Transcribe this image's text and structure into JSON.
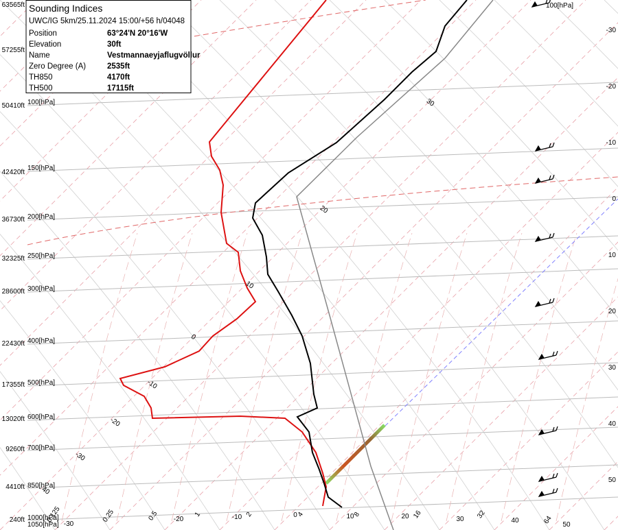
{
  "info": {
    "title": "Sounding Indices",
    "subtitle": "UWC/IG 5km/25.11.2024 15:00/+56 h/04048",
    "rows": [
      [
        "Position",
        "63°24'N 20°16'W"
      ],
      [
        "Elevation",
        "30ft"
      ],
      [
        "Name",
        "Vestmannaeyjaflugvöllur"
      ],
      [
        "Zero Degree (A)",
        "2535ft"
      ],
      [
        "TH850",
        "4170ft"
      ],
      [
        "TH500",
        "17115ft"
      ]
    ]
  },
  "altitude_labels": [
    "63565ft",
    "57255ft",
    "50410ft",
    "42420ft",
    "36730ft",
    "32325ft",
    "28600ft",
    "22430ft",
    "17355ft",
    "13020ft",
    "9260ft",
    "4410ft",
    "240ft"
  ],
  "pressure_labels": [
    "100[hPa]",
    "150[hPa]",
    "200[hPa]",
    "250[hPa]",
    "300[hPa]",
    "400[hPa]",
    "500[hPa]",
    "600[hPa]",
    "700[hPa]",
    "850[hPa]",
    "1000[hPa]",
    "1050[hPa]"
  ],
  "top_right_label": "100[hPa]",
  "right_temperature_labels": [
    "-30",
    "-20",
    "-10",
    "0",
    "10",
    "20",
    "30",
    "40",
    "50"
  ],
  "bottom_temperature_labels": [
    "-30",
    "-20",
    "-10",
    "0",
    "10",
    "20",
    "30",
    "40",
    "50"
  ],
  "mixing_ratio_labels": [
    "0.125",
    "0.25",
    "0.5",
    "1",
    "2",
    "4",
    "8",
    "16",
    "32",
    "64"
  ],
  "curve_labels": [
    "30",
    "20",
    "10",
    "0",
    "-10",
    "-20",
    "-30",
    "40"
  ]
}
